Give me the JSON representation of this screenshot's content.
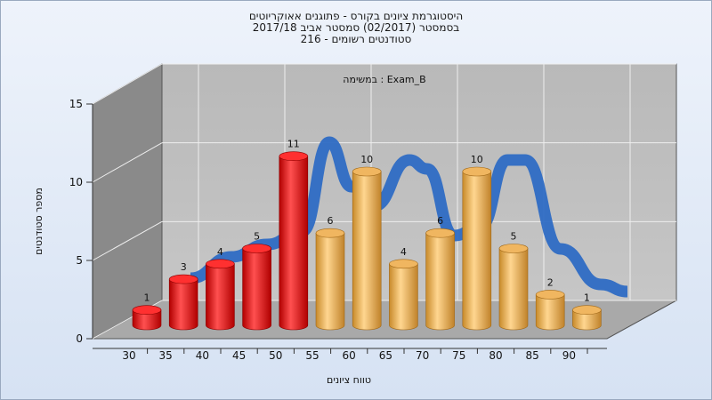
{
  "titles": {
    "line1": "היסטוגרמת ציונים בקורס - פתוגנים אאוקריוטים",
    "line2": "בסמסטר  (02/2017)  סמסטר אביב 2017/18",
    "line3": "סטודנטים רשומים - 216"
  },
  "chart_data": {
    "type": "bar",
    "title": "היסטוגרמת ציונים בקורס - פתוגנים אאוקריוטים",
    "annotation": "במשימה : Exam_B",
    "xlabel": "טווח ציונים",
    "ylabel": "מספר סטודנטים",
    "x_ticks": [
      "30",
      "35",
      "40",
      "45",
      "50",
      "55",
      "60",
      "65",
      "70",
      "75",
      "80",
      "85",
      "90"
    ],
    "y_ticks": [
      "0",
      "5",
      "10",
      "15"
    ],
    "ylim": [
      0,
      15
    ],
    "grid": true,
    "colors": {
      "fail": "#e02020",
      "pass": "#e8a845",
      "curve": "#2e6cc4"
    },
    "bars": [
      {
        "x": 30,
        "value": 1,
        "label": "1",
        "group": "fail"
      },
      {
        "x": 35,
        "value": 3,
        "label": "3",
        "group": "fail"
      },
      {
        "x": 40,
        "value": 4,
        "label": "4",
        "group": "fail"
      },
      {
        "x": 45,
        "value": 5,
        "label": "5",
        "group": "fail"
      },
      {
        "x": 50,
        "value": 11,
        "label": "11",
        "group": "fail"
      },
      {
        "x": 55,
        "value": 6,
        "label": "6",
        "group": "pass"
      },
      {
        "x": 60,
        "value": 10,
        "label": "10",
        "group": "pass"
      },
      {
        "x": 65,
        "value": 4,
        "label": "4",
        "group": "pass"
      },
      {
        "x": 70,
        "value": 6,
        "label": "6",
        "group": "pass"
      },
      {
        "x": 75,
        "value": 10,
        "label": "10",
        "group": "pass"
      },
      {
        "x": 80,
        "value": 5,
        "label": "5",
        "group": "pass"
      },
      {
        "x": 85,
        "value": 2,
        "label": "2",
        "group": "pass"
      },
      {
        "x": 90,
        "value": 1,
        "label": "1",
        "group": "pass"
      }
    ]
  }
}
